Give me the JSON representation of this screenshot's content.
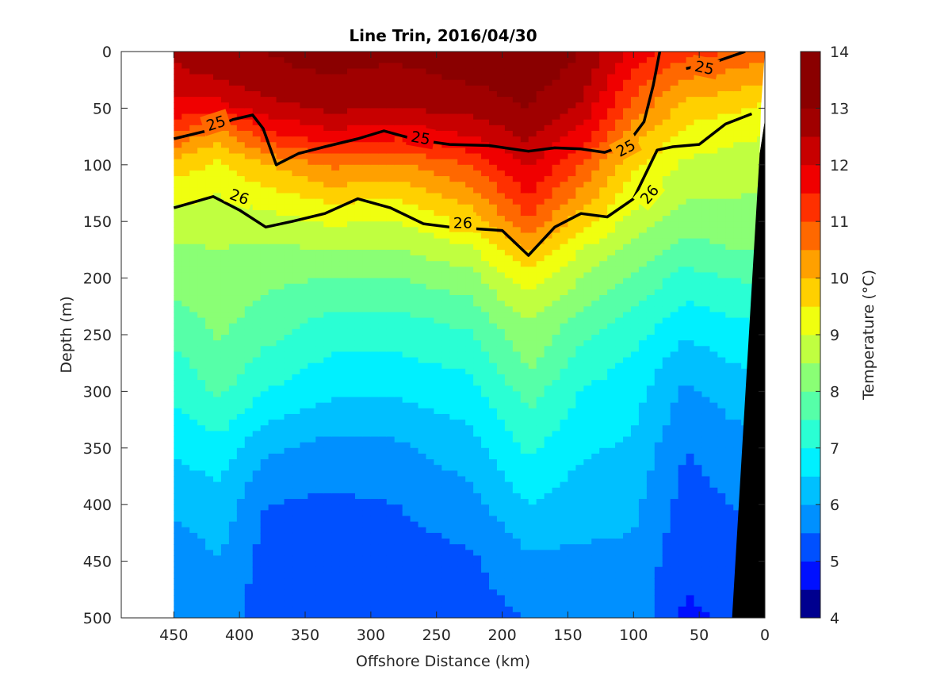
{
  "chart_data": {
    "type": "contourf",
    "title": "Line Trin, 2016/04/30",
    "xlabel": "Offshore Distance (km)",
    "ylabel": "Depth (m)",
    "colorbar_label": "Temperature (°C)",
    "x_reversed": true,
    "y_reversed": true,
    "xlim": [
      490,
      0
    ],
    "ylim": [
      0,
      500
    ],
    "xticks": [
      450,
      400,
      350,
      300,
      250,
      200,
      150,
      100,
      50,
      0
    ],
    "yticks": [
      0,
      50,
      100,
      150,
      200,
      250,
      300,
      350,
      400,
      450,
      500
    ],
    "colorbar_ticks": [
      4,
      5,
      6,
      7,
      8,
      9,
      10,
      11,
      12,
      13,
      14
    ],
    "colorbar_range": [
      4,
      14
    ],
    "contour_step_degC": 0.5,
    "palette": [
      "#00008f",
      "#0010ff",
      "#0050ff",
      "#0090ff",
      "#00c0ff",
      "#00f0ff",
      "#2affd4",
      "#56ffa8",
      "#8aff75",
      "#c0ff40",
      "#f0ff0f",
      "#ffd000",
      "#ffa000",
      "#ff6800",
      "#ff3000",
      "#f00000",
      "#c80000",
      "#a00000",
      "#8a0000"
    ],
    "data_extent_x_km": [
      0,
      450
    ],
    "bathymetry": "seafloor wedge on the nearshore side, from about 0 km at 50 m depth to about 25 km at 500 m",
    "temperature_profiles": [
      {
        "x": 450,
        "depths": [
          0,
          20,
          50,
          75,
          100,
          140,
          175,
          200,
          240,
          275,
          300,
          350,
          400,
          450,
          500
        ],
        "temps": [
          12.6,
          12.4,
          11.8,
          10.9,
          9.8,
          8.9,
          8.4,
          8.2,
          7.8,
          7.3,
          7.1,
          6.6,
          6.1,
          5.7,
          5.6
        ]
      },
      {
        "x": 415,
        "depths": [
          0,
          20,
          50,
          75,
          100,
          140,
          175,
          200,
          240,
          275,
          300,
          350,
          400,
          450,
          500
        ],
        "temps": [
          12.8,
          12.6,
          11.8,
          10.1,
          9.4,
          8.8,
          8.5,
          8.3,
          8.1,
          7.9,
          7.6,
          6.8,
          6.3,
          6.0,
          5.8
        ]
      },
      {
        "x": 380,
        "depths": [
          0,
          20,
          50,
          75,
          100,
          140,
          175,
          200,
          240,
          275,
          300,
          350,
          400,
          450,
          500
        ],
        "temps": [
          13.0,
          12.9,
          12.3,
          11.3,
          10.0,
          9.0,
          8.4,
          8.1,
          7.8,
          7.3,
          7.0,
          6.1,
          5.5,
          5.3,
          5.2
        ]
      },
      {
        "x": 330,
        "depths": [
          0,
          20,
          50,
          75,
          100,
          140,
          175,
          200,
          240,
          275,
          300,
          350,
          400,
          450,
          500
        ],
        "temps": [
          13.2,
          13.0,
          12.6,
          11.8,
          10.6,
          9.3,
          8.5,
          8.0,
          7.3,
          6.9,
          6.6,
          5.8,
          5.4,
          5.2,
          5.1
        ]
      },
      {
        "x": 280,
        "depths": [
          0,
          20,
          50,
          75,
          100,
          140,
          175,
          200,
          240,
          275,
          300,
          350,
          400,
          450,
          500
        ],
        "temps": [
          13.1,
          12.9,
          12.5,
          11.6,
          10.4,
          9.2,
          8.5,
          8.0,
          7.3,
          6.9,
          6.6,
          5.9,
          5.5,
          5.3,
          5.2
        ]
      },
      {
        "x": 225,
        "depths": [
          0,
          20,
          50,
          75,
          100,
          140,
          175,
          200,
          240,
          275,
          300,
          350,
          400,
          450,
          500
        ],
        "temps": [
          13.3,
          13.1,
          12.7,
          12.0,
          11.0,
          9.9,
          8.9,
          8.3,
          7.6,
          7.1,
          6.8,
          6.3,
          5.8,
          5.4,
          5.3
        ]
      },
      {
        "x": 180,
        "depths": [
          0,
          20,
          50,
          75,
          100,
          140,
          175,
          200,
          240,
          275,
          300,
          350,
          400,
          450,
          500
        ],
        "temps": [
          13.5,
          13.3,
          13.0,
          12.6,
          12.1,
          11.2,
          10.1,
          9.3,
          8.5,
          8.1,
          7.7,
          7.1,
          6.5,
          5.9,
          5.5
        ]
      },
      {
        "x": 140,
        "depths": [
          0,
          20,
          50,
          75,
          100,
          140,
          175,
          200,
          240,
          275,
          300,
          350,
          400,
          450,
          500
        ],
        "temps": [
          13.0,
          12.8,
          12.4,
          11.8,
          11.0,
          10.0,
          9.0,
          8.5,
          7.8,
          7.3,
          7.0,
          6.6,
          6.2,
          5.9,
          5.6
        ]
      },
      {
        "x": 100,
        "depths": [
          0,
          20,
          50,
          75,
          100,
          140,
          175,
          200,
          240,
          275,
          300,
          350,
          400,
          450,
          500
        ],
        "temps": [
          11.8,
          11.4,
          10.8,
          10.2,
          9.6,
          9.0,
          8.3,
          7.9,
          7.3,
          6.9,
          6.7,
          6.4,
          6.1,
          5.9,
          5.8
        ]
      },
      {
        "x": 60,
        "depths": [
          0,
          20,
          50,
          75,
          100,
          140,
          175,
          200,
          240,
          275,
          300,
          350,
          400,
          450,
          500
        ],
        "temps": [
          11.2,
          10.6,
          9.8,
          9.3,
          8.9,
          8.4,
          7.8,
          7.3,
          6.7,
          6.2,
          5.9,
          5.5,
          5.3,
          5.1,
          4.9
        ]
      },
      {
        "x": 25,
        "depths": [
          0,
          20,
          50,
          75,
          100,
          140,
          175,
          200,
          240,
          275,
          300,
          350,
          400,
          450,
          500
        ],
        "temps": [
          11.0,
          10.4,
          9.6,
          9.1,
          8.8,
          8.4,
          8.0,
          7.5,
          6.9,
          6.5,
          6.2,
          5.8,
          5.5,
          5.3,
          5.1
        ]
      },
      {
        "x": 0,
        "depths": [
          0,
          20,
          50,
          75,
          100,
          140,
          175,
          200,
          240,
          275,
          300,
          350,
          400,
          450,
          500
        ],
        "temps": [
          10.8,
          10.2,
          9.4,
          9.0,
          8.7,
          8.3,
          8.0,
          7.6,
          7.0,
          6.6,
          6.3,
          5.9,
          5.6,
          5.4,
          5.2
        ]
      }
    ],
    "density_contours": [
      {
        "label": "25",
        "points": [
          [
            450,
            77
          ],
          [
            425,
            70
          ],
          [
            405,
            60
          ],
          [
            390,
            56
          ],
          [
            382,
            68
          ],
          [
            372,
            100
          ],
          [
            355,
            90
          ],
          [
            335,
            84
          ],
          [
            310,
            77
          ],
          [
            290,
            70
          ],
          [
            265,
            78
          ],
          [
            240,
            82
          ],
          [
            210,
            83
          ],
          [
            180,
            88
          ],
          [
            160,
            85
          ],
          [
            140,
            86
          ],
          [
            122,
            89
          ],
          [
            105,
            82
          ],
          [
            92,
            62
          ],
          [
            85,
            30
          ],
          [
            80,
            0
          ]
        ]
      },
      {
        "label": "25",
        "points": [
          [
            60,
            15
          ],
          [
            40,
            10
          ],
          [
            15,
            0
          ]
        ]
      },
      {
        "label": "26",
        "points": [
          [
            450,
            138
          ],
          [
            420,
            128
          ],
          [
            400,
            140
          ],
          [
            380,
            155
          ],
          [
            360,
            150
          ],
          [
            335,
            143
          ],
          [
            310,
            130
          ],
          [
            285,
            138
          ],
          [
            260,
            152
          ],
          [
            240,
            155
          ],
          [
            200,
            158
          ],
          [
            180,
            180
          ],
          [
            160,
            155
          ],
          [
            140,
            143
          ],
          [
            120,
            146
          ],
          [
            100,
            130
          ],
          [
            82,
            87
          ],
          [
            70,
            84
          ],
          [
            50,
            82
          ],
          [
            30,
            64
          ],
          [
            10,
            55
          ]
        ]
      }
    ],
    "contour_labels": [
      {
        "text": "25",
        "x": 418,
        "y": 63,
        "angle": -18
      },
      {
        "text": "25",
        "x": 262,
        "y": 76,
        "angle": 10
      },
      {
        "text": "25",
        "x": 106,
        "y": 85,
        "angle": -28
      },
      {
        "text": "25",
        "x": 46,
        "y": 14,
        "angle": 12
      },
      {
        "text": "26",
        "x": 400,
        "y": 128,
        "angle": 20
      },
      {
        "text": "26",
        "x": 230,
        "y": 151,
        "angle": 0
      },
      {
        "text": "26",
        "x": 88,
        "y": 126,
        "angle": -50
      }
    ]
  }
}
